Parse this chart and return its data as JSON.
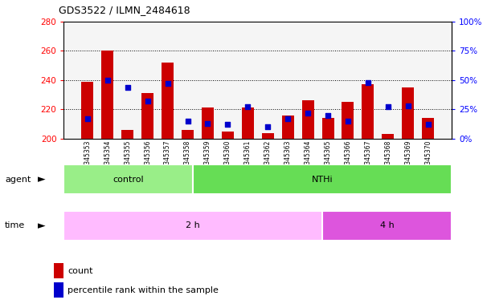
{
  "title": "GDS3522 / ILMN_2484618",
  "samples": [
    "GSM345353",
    "GSM345354",
    "GSM345355",
    "GSM345356",
    "GSM345357",
    "GSM345358",
    "GSM345359",
    "GSM345360",
    "GSM345361",
    "GSM345362",
    "GSM345363",
    "GSM345364",
    "GSM345365",
    "GSM345366",
    "GSM345367",
    "GSM345368",
    "GSM345369",
    "GSM345370"
  ],
  "counts": [
    239,
    260,
    206,
    231,
    252,
    206,
    221,
    205,
    221,
    204,
    216,
    226,
    214,
    225,
    237,
    203,
    235,
    214
  ],
  "percentile_ranks": [
    17,
    50,
    44,
    32,
    47,
    15,
    13,
    12,
    27,
    10,
    17,
    22,
    20,
    15,
    48,
    27,
    28,
    12
  ],
  "agent_groups": [
    {
      "label": "control",
      "start": 0,
      "end": 5,
      "color": "#99ee88"
    },
    {
      "label": "NTHi",
      "start": 6,
      "end": 17,
      "color": "#66dd55"
    }
  ],
  "time_groups": [
    {
      "label": "2 h",
      "start": 0,
      "end": 11,
      "color": "#ffbbff"
    },
    {
      "label": "4 h",
      "start": 12,
      "end": 17,
      "color": "#dd55dd"
    }
  ],
  "ylim_left": [
    200,
    280
  ],
  "ylim_right": [
    0,
    100
  ],
  "yticks_left": [
    200,
    220,
    240,
    260,
    280
  ],
  "yticks_right": [
    0,
    25,
    50,
    75,
    100
  ],
  "bar_color": "#cc0000",
  "dot_color": "#0000cc",
  "bar_width": 0.6,
  "background_color": "#ffffff",
  "plot_bg_color": "#f5f5f5"
}
